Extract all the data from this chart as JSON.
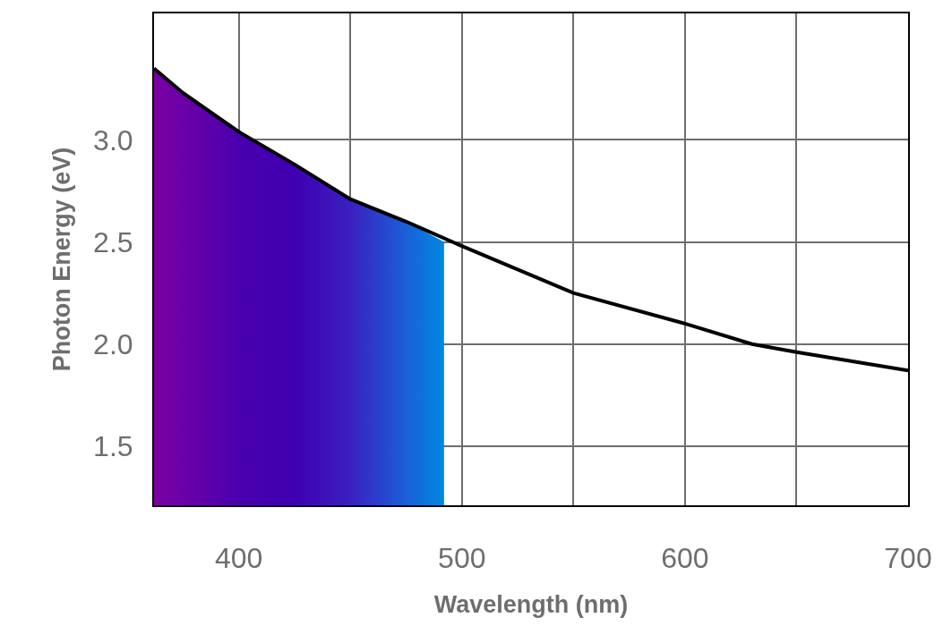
{
  "chart_data": {
    "type": "line",
    "xlabel": "Wavelength (nm)",
    "ylabel": "Photon Energy (eV)",
    "xlim": [
      362,
      700
    ],
    "ylim": [
      1.21,
      3.62
    ],
    "xticks": [
      400,
      {
        "value": 450,
        "label": null
      },
      500,
      {
        "value": 550,
        "label": null
      },
      600,
      {
        "value": 650,
        "label": null
      },
      700
    ],
    "yticks": [
      1.5,
      {
        "value": 2,
        "label": "2.0"
      },
      2.5,
      {
        "value": 3,
        "label": "3.0"
      }
    ],
    "grid": true,
    "marker": "none",
    "line_style": "solid",
    "series": [
      {
        "type": "area",
        "colors": [
          "#7a00a0",
          "#6a00a8",
          "#4a00ae",
          "#3f00b0",
          "#3a20c0",
          "#1a60d8",
          "#0088e0"
        ],
        "x": [
          362,
          375,
          400,
          425,
          450,
          475,
          492
        ],
        "values": [
          3.35,
          3.23,
          3.04,
          2.88,
          2.71,
          2.6,
          2.5
        ]
      },
      {
        "color": "#000000",
        "x": [
          362,
          375,
          400,
          425,
          450,
          475,
          500,
          550,
          600,
          630,
          650,
          700
        ],
        "values": [
          3.35,
          3.23,
          3.04,
          2.88,
          2.71,
          2.6,
          2.48,
          2.25,
          2.1,
          2.0,
          1.96,
          1.87
        ]
      }
    ]
  }
}
